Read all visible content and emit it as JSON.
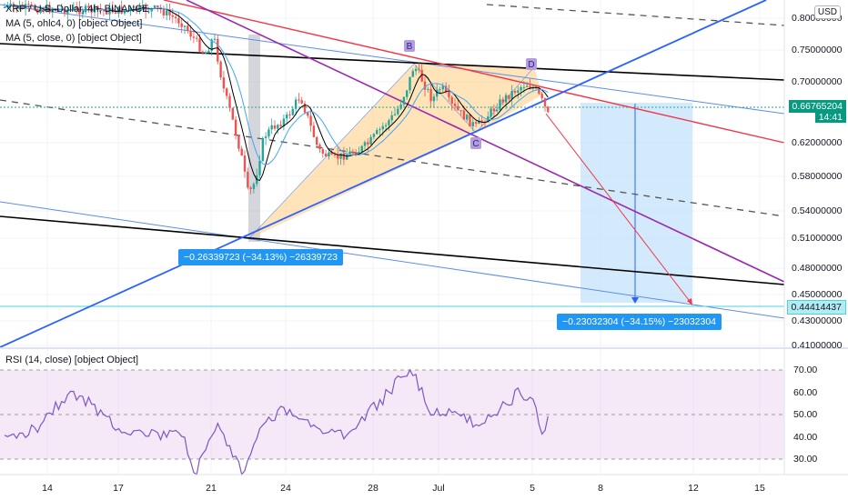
{
  "header": {
    "title": "XRP / U.S. Dollar, 4h, BINANCE",
    "ind1": "MA (5, ohlc4, 0) [object Object]",
    "ind2": "MA (5, close, 0) [object Object]"
  },
  "currency_button": "USD",
  "price_axis": [
    "0.80000000",
    "0.75000000",
    "0.70000000",
    "0.62000000",
    "0.58000000",
    "0.54000000",
    "0.51000000",
    "0.48000000",
    "0.45000000",
    "0.43000000",
    "0.41000000"
  ],
  "current_price": "0.66765204",
  "countdown": "14:41",
  "target_price": "0.44414437",
  "measure_left": "−0.26339723 (−34.13%) −26339723",
  "measure_right": "−0.23032304 (−34.15%) −23032304",
  "pattern_points": [
    "B",
    "C",
    "D"
  ],
  "rsi_title": "RSI (14, close) [object Object]",
  "rsi_axis": [
    "70.00",
    "60.00",
    "50.00",
    "40.00",
    "30.00"
  ],
  "time_axis": [
    "14",
    "17",
    "21",
    "24",
    "28",
    "Jul",
    "5",
    "8",
    "12",
    "15"
  ],
  "colors": {
    "up": "#26a69a",
    "down": "#ef5350",
    "blue": "#2962ff",
    "purple": "#9c27b0",
    "red": "#f23645",
    "triangle": "#ffcc80"
  }
}
